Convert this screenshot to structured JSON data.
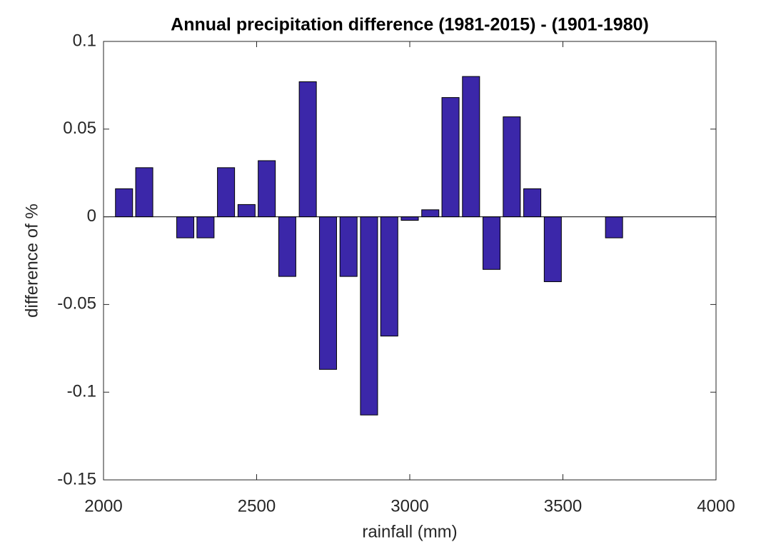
{
  "chart_data": {
    "type": "bar",
    "title": "Annual precipitation difference (1981-2015) - (1901-1980)",
    "x_label": "rainfall (mm)",
    "y_label": "difference of %",
    "x": [
      2067,
      2133,
      2200,
      2267,
      2333,
      2400,
      2467,
      2533,
      2600,
      2667,
      2733,
      2800,
      2867,
      2933,
      3000,
      3067,
      3133,
      3200,
      3267,
      3333,
      3400,
      3467,
      3533,
      3600,
      3667,
      3733,
      3800,
      3867
    ],
    "values": [
      0.016,
      0.028,
      0,
      -0.012,
      -0.012,
      0.028,
      0.007,
      0.032,
      -0.034,
      0.077,
      -0.087,
      -0.034,
      -0.113,
      -0.068,
      -0.002,
      0.004,
      0.068,
      0.08,
      -0.03,
      0.057,
      0.016,
      -0.037,
      0,
      0,
      -0.012,
      0,
      0,
      0
    ],
    "color": "#3b27a9",
    "xlim": [
      2000,
      4000
    ],
    "xticks": [
      2000,
      2500,
      3000,
      3500,
      4000
    ],
    "ylim": [
      -0.15,
      0.1
    ],
    "yticks": [
      -0.15,
      -0.1,
      -0.05,
      0,
      0.05,
      0.1
    ]
  }
}
